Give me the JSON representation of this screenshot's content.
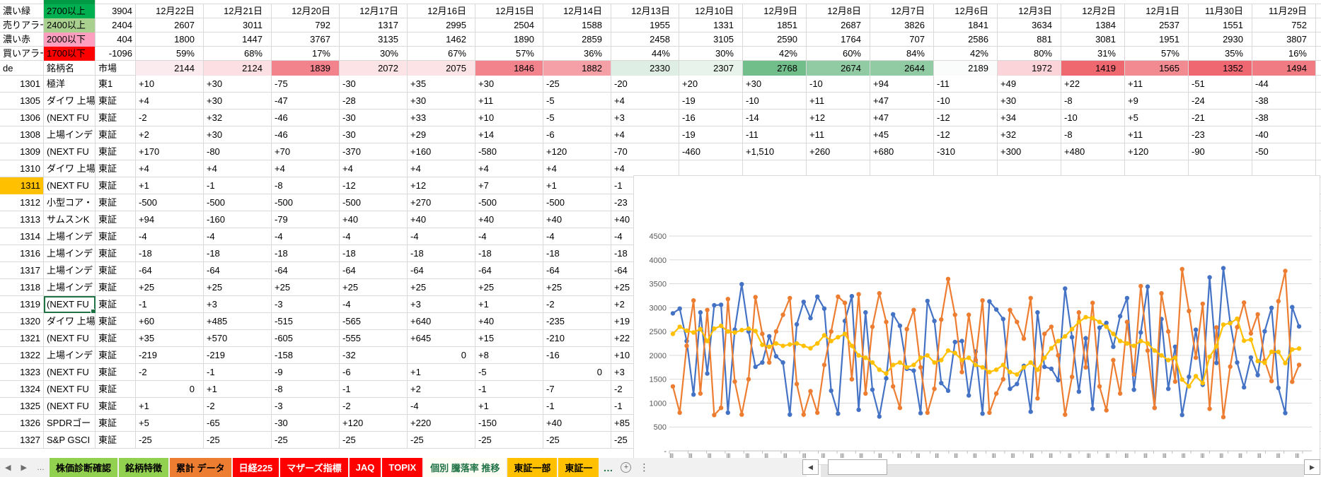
{
  "colors": {
    "grid": "#d9d9d9",
    "legend_green": "#00B050",
    "legend_green_dark": "#009A45",
    "legend_lightgreen": "#A9D08E",
    "legend_pink": "#FF9FBF",
    "legend_red": "#FF0000",
    "row_highlight": "#FFC000",
    "selection_green": "#217346",
    "series_blue": "#4472C4",
    "series_orange": "#ED7D31",
    "series_yellow": "#FFC000"
  },
  "legend": {
    "rows": [
      {
        "label": "濃い緑",
        "threshold": "2700以上",
        "value": "3904",
        "color": "#00B050"
      },
      {
        "label": "売りアラー",
        "threshold": "2400以上",
        "value": "2404",
        "color": "#A9D08E"
      },
      {
        "label": "濃い赤",
        "threshold": "2000以下",
        "value": "404",
        "color": "#FF9FBF"
      },
      {
        "label": "買いアラー",
        "threshold": "1700以下",
        "value": "-1096",
        "color": "#FF0000"
      }
    ]
  },
  "dates": [
    "12月22日",
    "12月21日",
    "12月20日",
    "12月17日",
    "12月16日",
    "12月15日",
    "12月14日",
    "12月13日",
    "12月10日",
    "12月9日",
    "12月8日",
    "12月7日",
    "12月6日",
    "12月3日",
    "12月2日",
    "12月1日",
    "11月30日",
    "11月29日"
  ],
  "sell_counts": [
    "2607",
    "3011",
    "792",
    "1317",
    "2995",
    "2504",
    "1588",
    "1955",
    "1331",
    "1851",
    "2687",
    "3826",
    "1841",
    "3634",
    "1384",
    "2537",
    "1551",
    "752"
  ],
  "buy_counts": [
    "1800",
    "1447",
    "3767",
    "3135",
    "1462",
    "1890",
    "2859",
    "2458",
    "3105",
    "2590",
    "1764",
    "707",
    "2586",
    "881",
    "3081",
    "1951",
    "2930",
    "3807"
  ],
  "percents": [
    "59%",
    "68%",
    "17%",
    "30%",
    "67%",
    "57%",
    "36%",
    "44%",
    "30%",
    "42%",
    "60%",
    "84%",
    "42%",
    "80%",
    "31%",
    "57%",
    "35%",
    "16%"
  ],
  "de_row": {
    "label": "de",
    "name_header": "銘柄名",
    "market_header": "市場",
    "values": [
      {
        "v": "2144",
        "c": "#FCEBEE"
      },
      {
        "v": "2124",
        "c": "#FBDFE3"
      },
      {
        "v": "1839",
        "c": "#F2828B"
      },
      {
        "v": "2072",
        "c": "#FBE3E6"
      },
      {
        "v": "2075",
        "c": "#FBE3E6"
      },
      {
        "v": "1846",
        "c": "#F2838C"
      },
      {
        "v": "1882",
        "c": "#F4A0A6"
      },
      {
        "v": "2330",
        "c": "#DFEEE4"
      },
      {
        "v": "2307",
        "c": "#E8F3EC"
      },
      {
        "v": "2768",
        "c": "#71BE8B"
      },
      {
        "v": "2674",
        "c": "#90CBA4"
      },
      {
        "v": "2644",
        "c": "#90CBA4"
      },
      {
        "v": "2189",
        "c": "#FAFCFB"
      },
      {
        "v": "1972",
        "c": "#FAD4D9"
      },
      {
        "v": "1419",
        "c": "#EF676F"
      },
      {
        "v": "1565",
        "c": "#F28A91"
      },
      {
        "v": "1352",
        "c": "#EF6770"
      },
      {
        "v": "1494",
        "c": "#F17B82"
      }
    ]
  },
  "stocks": [
    {
      "code": "1301",
      "name": "極洋",
      "market": "東1",
      "values": [
        "+10",
        "+30",
        "-75",
        "-30",
        "+35",
        "+30",
        "-25",
        "-20",
        "+20",
        "+30",
        "-10",
        "+94",
        "-11",
        "+49",
        "+22",
        "+11",
        "-51",
        "-44"
      ]
    },
    {
      "code": "1305",
      "name": "ダイワ 上場",
      "market": "東証",
      "values": [
        "+4",
        "+30",
        "-47",
        "-28",
        "+30",
        "+11",
        "-5",
        "+4",
        "-19",
        "-10",
        "+11",
        "+47",
        "-10",
        "+30",
        "-8",
        "+9",
        "-24",
        "-38"
      ]
    },
    {
      "code": "1306",
      "name": "(NEXT FU",
      "market": "東証",
      "values": [
        "-2",
        "+32",
        "-46",
        "-30",
        "+33",
        "+10",
        "-5",
        "+3",
        "-16",
        "-14",
        "+12",
        "+47",
        "-12",
        "+34",
        "-10",
        "+5",
        "-21",
        "-38"
      ]
    },
    {
      "code": "1308",
      "name": "上場インデ",
      "market": "東証",
      "values": [
        "+2",
        "+30",
        "-46",
        "-30",
        "+29",
        "+14",
        "-6",
        "+4",
        "-19",
        "-11",
        "+11",
        "+45",
        "-12",
        "+32",
        "-8",
        "+11",
        "-23",
        "-40"
      ]
    },
    {
      "code": "1309",
      "name": "(NEXT FU",
      "market": "東証",
      "values": [
        "+170",
        "-80",
        "+70",
        "-370",
        "+160",
        "-580",
        "+120",
        "-70",
        "-460",
        "+1,510",
        "+260",
        "+680",
        "-310",
        "+300",
        "+480",
        "+120",
        "-90",
        "-50"
      ]
    },
    {
      "code": "1310",
      "name": "ダイワ 上場",
      "market": "東証",
      "values": [
        "+4",
        "+4",
        "+4",
        "+4",
        "+4",
        "+4",
        "+4",
        "+4",
        "",
        "",
        "",
        "",
        "",
        "",
        "",
        "",
        "",
        ""
      ]
    },
    {
      "code": "1311",
      "name": "(NEXT FU",
      "market": "東証",
      "highlight": true,
      "values": [
        "+1",
        "-1",
        "-8",
        "-12",
        "+12",
        "+7",
        "+1",
        "-1",
        "",
        "",
        "",
        "",
        "",
        "",
        "",
        "",
        "",
        ""
      ]
    },
    {
      "code": "1312",
      "name": "小型コア・",
      "market": "東証",
      "values": [
        "-500",
        "-500",
        "-500",
        "-500",
        "+270",
        "-500",
        "-500",
        "-23",
        "",
        "",
        "",
        "",
        "",
        "",
        "",
        "",
        "",
        ""
      ]
    },
    {
      "code": "1313",
      "name": "サムスンK",
      "market": "東証",
      "values": [
        "+94",
        "-160",
        "-79",
        "+40",
        "+40",
        "+40",
        "+40",
        "+40",
        "",
        "",
        "",
        "",
        "",
        "",
        "",
        "",
        "",
        ""
      ]
    },
    {
      "code": "1314",
      "name": "上場インデ",
      "market": "東証",
      "values": [
        "-4",
        "-4",
        "-4",
        "-4",
        "-4",
        "-4",
        "-4",
        "-4",
        "",
        "",
        "",
        "",
        "",
        "",
        "",
        "",
        "",
        ""
      ]
    },
    {
      "code": "1316",
      "name": "上場インデ",
      "market": "東証",
      "values": [
        "-18",
        "-18",
        "-18",
        "-18",
        "-18",
        "-18",
        "-18",
        "-18",
        "",
        "",
        "",
        "",
        "",
        "",
        "",
        "",
        "",
        ""
      ]
    },
    {
      "code": "1317",
      "name": "上場インデ",
      "market": "東証",
      "values": [
        "-64",
        "-64",
        "-64",
        "-64",
        "-64",
        "-64",
        "-64",
        "-64",
        "",
        "",
        "",
        "",
        "",
        "",
        "",
        "",
        "",
        ""
      ]
    },
    {
      "code": "1318",
      "name": "上場インデ",
      "market": "東証",
      "values": [
        "+25",
        "+25",
        "+25",
        "+25",
        "+25",
        "+25",
        "+25",
        "+25",
        "",
        "",
        "",
        "",
        "",
        "",
        "",
        "",
        "",
        ""
      ]
    },
    {
      "code": "1319",
      "name": "(NEXT FU",
      "market": "東証",
      "selected": true,
      "values": [
        "-1",
        "+3",
        "-3",
        "-4",
        "+3",
        "+1",
        "-2",
        "+2",
        "",
        "",
        "",
        "",
        "",
        "",
        "",
        "",
        "",
        ""
      ]
    },
    {
      "code": "1320",
      "name": "ダイワ 上場",
      "market": "東証",
      "values": [
        "+60",
        "+485",
        "-515",
        "-565",
        "+640",
        "+40",
        "-235",
        "+19",
        "",
        "",
        "",
        "",
        "",
        "",
        "",
        "",
        "",
        ""
      ]
    },
    {
      "code": "1321",
      "name": "(NEXT FU",
      "market": "東証",
      "values": [
        "+35",
        "+570",
        "-605",
        "-555",
        "+645",
        "+15",
        "-210",
        "+22",
        "",
        "",
        "",
        "",
        "",
        "",
        "",
        "",
        "",
        ""
      ]
    },
    {
      "code": "1322",
      "name": "上場インデ",
      "market": "東証",
      "values": [
        "-219",
        "-219",
        "-158",
        "-32",
        {
          "v": "0",
          "r": true
        },
        "+8",
        "-16",
        "+10",
        "",
        "",
        "",
        "",
        "",
        "",
        "",
        "",
        "",
        ""
      ]
    },
    {
      "code": "1323",
      "name": "(NEXT FU",
      "market": "東証",
      "values": [
        "-2",
        "-1",
        "-9",
        "-6",
        "+1",
        "-5",
        {
          "v": "0",
          "r": true
        },
        "+3",
        "",
        "",
        "",
        "",
        "",
        "",
        "",
        "",
        "",
        ""
      ]
    },
    {
      "code": "1324",
      "name": "(NEXT FU",
      "market": "東証",
      "values": [
        {
          "v": "0",
          "r": true
        },
        "+1",
        "-8",
        "-1",
        "+2",
        "-1",
        "-7",
        "-2",
        "",
        "",
        "",
        "",
        "",
        "",
        "",
        "",
        "",
        ""
      ]
    },
    {
      "code": "1325",
      "name": "(NEXT FU",
      "market": "東証",
      "values": [
        "+1",
        "-2",
        "-3",
        "-2",
        "-4",
        "+1",
        "-1",
        "-1",
        "",
        "",
        "",
        "",
        "",
        "",
        "",
        "",
        "",
        ""
      ]
    },
    {
      "code": "1326",
      "name": "SPDRゴー",
      "market": "東証",
      "values": [
        "+5",
        "-65",
        "-30",
        "+120",
        "+220",
        "-150",
        "+40",
        "+85",
        "",
        "",
        "",
        "",
        "",
        "",
        "",
        "",
        "",
        ""
      ]
    },
    {
      "code": "1327",
      "name": "S&P GSCI",
      "market": "東証",
      "values": [
        "-25",
        "-25",
        "-25",
        "-25",
        "-25",
        "-25",
        "-25",
        "-25",
        "",
        "",
        "",
        "",
        "",
        "",
        "",
        "",
        "",
        ""
      ]
    }
  ],
  "chart_data": {
    "type": "line",
    "title": "",
    "ylabel": "",
    "xlabel": "",
    "ylim": [
      0,
      4700
    ],
    "y_ticks": [
      "4500",
      "4000",
      "3500",
      "3000",
      "2500",
      "2000",
      "1500",
      "1000",
      "500",
      "-"
    ],
    "grid": true,
    "legend_position": "none",
    "series": [
      {
        "name": "blue",
        "color": "#4472C4",
        "values": [
          2880,
          2980,
          2300,
          1180,
          2900,
          1620,
          3050,
          3060,
          800,
          2540,
          3490,
          2500,
          1760,
          1850,
          2400,
          1980,
          1850,
          760,
          2650,
          3120,
          2780,
          3230,
          2980,
          1260,
          780,
          2720,
          3240,
          860,
          2900,
          1280,
          720,
          1520,
          2860,
          2620,
          1720,
          1680,
          790,
          3140,
          2720,
          1420,
          1260,
          2280,
          2300,
          1160,
          2080,
          780,
          3130,
          2960,
          2760,
          1300,
          1400,
          1780,
          820,
          2900,
          1760,
          1720,
          1480,
          3400,
          2380,
          1240,
          2360,
          880,
          2580,
          2680,
          2180,
          2820,
          3200,
          1280,
          2480,
          3440,
          900,
          2760,
          1300,
          2180,
          752,
          1551,
          2537,
          1384,
          3634,
          1841,
          3826,
          2687,
          1851,
          1331,
          1955,
          1588,
          2504,
          2995,
          1317,
          792,
          3011,
          2607
        ]
      },
      {
        "name": "orange",
        "color": "#ED7D31",
        "values": [
          1350,
          800,
          2200,
          3150,
          1200,
          2950,
          750,
          900,
          3180,
          1450,
          760,
          1500,
          3220,
          2450,
          1850,
          2500,
          2850,
          3200,
          1400,
          760,
          1250,
          800,
          1800,
          2500,
          3230,
          3100,
          1500,
          3280,
          1200,
          2600,
          3300,
          2700,
          1350,
          900,
          2550,
          2950,
          1750,
          800,
          1300,
          2750,
          3600,
          2850,
          1650,
          2850,
          1900,
          3150,
          800,
          1200,
          1500,
          2950,
          2700,
          2350,
          3200,
          1100,
          2450,
          2600,
          2000,
          760,
          1550,
          2900,
          1750,
          3100,
          1350,
          850,
          1900,
          1200,
          2700,
          1600,
          3450,
          2100,
          900,
          3300,
          2500,
          1450,
          3807,
          2930,
          1951,
          3081,
          881,
          2586,
          707,
          1764,
          2590,
          3105,
          2458,
          2859,
          1890,
          1462,
          3135,
          3767,
          1447,
          1800
        ]
      },
      {
        "name": "yellow",
        "color": "#FFC000",
        "values": [
          2450,
          2600,
          2520,
          2480,
          2550,
          2300,
          2560,
          2620,
          2500,
          2480,
          2530,
          2560,
          2510,
          2220,
          2180,
          2250,
          2200,
          2230,
          2250,
          2200,
          2150,
          2250,
          2420,
          2300,
          2380,
          2450,
          2200,
          2000,
          1950,
          1850,
          1700,
          1620,
          1800,
          1850,
          1750,
          1800,
          1950,
          2000,
          1850,
          1900,
          2100,
          2050,
          1900,
          1950,
          1800,
          1750,
          1650,
          1700,
          1800,
          1650,
          1600,
          1750,
          1850,
          1700,
          1950,
          2150,
          2300,
          2400,
          2550,
          2700,
          2800,
          2780,
          2700,
          2600,
          2450,
          2300,
          2250,
          2200,
          2300,
          2250,
          2100,
          2000,
          1900,
          1950,
          1494,
          1352,
          1565,
          1419,
          1972,
          2189,
          2644,
          2674,
          2768,
          2307,
          2330,
          1882,
          1846,
          2075,
          2072,
          1839,
          2124,
          2144
        ]
      }
    ]
  },
  "tabbar": {
    "nav": {
      "prev": "◀",
      "next": "▶",
      "more": "…"
    },
    "tabs": [
      {
        "label": "株価診断確認",
        "bg": "#92D050",
        "fg": "#000000"
      },
      {
        "label": "銘柄特徴",
        "bg": "#92D050",
        "fg": "#000000"
      },
      {
        "label": "累計 データ",
        "bg": "#ED7D31",
        "fg": "#000000"
      },
      {
        "label": "日経225",
        "bg": "#FF0000",
        "fg": "#FFFFFF"
      },
      {
        "label": "マザーズ指標",
        "bg": "#FF0000",
        "fg": "#FFFFFF"
      },
      {
        "label": "JAQ",
        "bg": "#FF0000",
        "fg": "#FFFFFF"
      },
      {
        "label": "TOPIX",
        "bg": "#FF0000",
        "fg": "#FFFFFF"
      },
      {
        "label": "個別 騰落率 推移",
        "bg": "#FDFDF6",
        "fg": "#217346",
        "active": true
      },
      {
        "label": "東証一部",
        "bg": "#FFC000",
        "fg": "#000000"
      },
      {
        "label": "東証一",
        "bg": "#FFC000",
        "fg": "#000000",
        "clipped": true
      }
    ],
    "overflow_ellipsis": "…",
    "add_sheet": "+",
    "menu_dots": "⋮",
    "scroll_left": "◀",
    "scroll_right": "▶"
  }
}
